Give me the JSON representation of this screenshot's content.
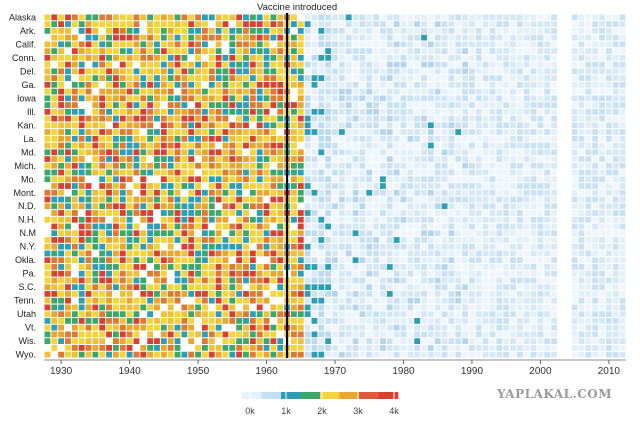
{
  "chart_data": {
    "type": "heatmap",
    "annotation": {
      "label": "Vaccine introduced",
      "year": 1963
    },
    "states_labeled": [
      "Alaska",
      "Ark.",
      "Calif.",
      "Conn.",
      "Del.",
      "Ga.",
      "Iowa",
      "Ill.",
      "Kan.",
      "La.",
      "Md.",
      "Mich.",
      "Mo.",
      "Mont.",
      "N.D.",
      "N.H.",
      "N.M",
      "N.Y.",
      "Okla.",
      "Pa.",
      "S.C.",
      "Tenn.",
      "Utah",
      "Vt.",
      "Wis.",
      "Wyo."
    ],
    "row_count": 51,
    "x_ticks": [
      1930,
      1940,
      1950,
      1960,
      1970,
      1980,
      1990,
      2000,
      2010
    ],
    "year_range": [
      1928,
      2012
    ],
    "color_scale": {
      "stops": [
        "#e7f1fb",
        "#c5dff2",
        "#2c9fb5",
        "#3ba86a",
        "#f5d33a",
        "#e9a82d",
        "#e05b3c",
        "#d9402f"
      ],
      "tick_labels": [
        "0k",
        "1k",
        "2k",
        "3k",
        "4k"
      ],
      "tick_values": [
        0,
        1000,
        2000,
        3000,
        4000
      ]
    },
    "watermark": "YAPLAKAL.COM"
  }
}
